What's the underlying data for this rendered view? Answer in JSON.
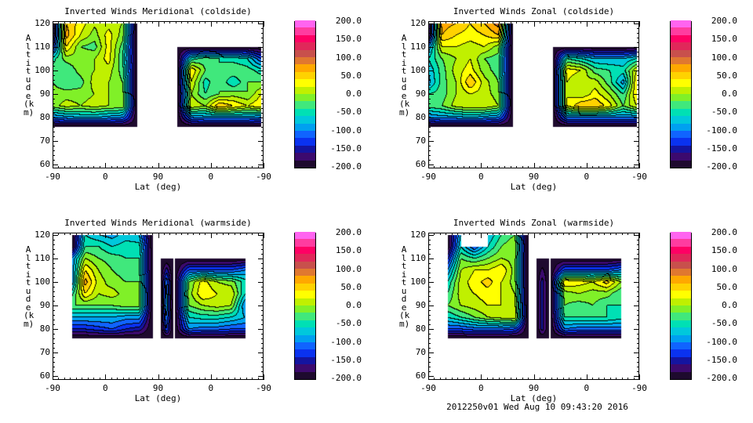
{
  "chart_data": [
    {
      "type": "heatmap",
      "title": "Inverted Winds Meridional (coldside)",
      "blocks": [
        {
          "x": [
            0,
            24,
            48,
            72,
            96,
            120,
            145
          ],
          "alt": [
            120,
            115,
            110,
            105,
            100,
            95,
            90,
            85,
            80,
            76
          ],
          "values": [
            [
              -200,
              60,
              30,
              5,
              10,
              0,
              -200
            ],
            [
              -200,
              70,
              20,
              -10,
              30,
              -10,
              -200
            ],
            [
              -150,
              40,
              -20,
              -30,
              30,
              -30,
              -200
            ],
            [
              -50,
              -10,
              -5,
              0,
              30,
              -40,
              -200
            ],
            [
              -30,
              -40,
              -10,
              0,
              10,
              -30,
              -200
            ],
            [
              -20,
              -40,
              -30,
              10,
              0,
              -20,
              -200
            ],
            [
              -10,
              -10,
              -10,
              0,
              0,
              -10,
              -200
            ],
            [
              -10,
              10,
              0,
              10,
              0,
              0,
              -200
            ],
            [
              -100,
              -90,
              -80,
              -80,
              -90,
              -100,
              -200
            ],
            [
              -200,
              -200,
              -200,
              -200,
              -200,
              -200,
              -200
            ]
          ]
        },
        {
          "x": [
            213,
            237,
            261,
            285,
            309,
            333,
            356
          ],
          "alt": [
            110,
            105,
            100,
            95,
            90,
            85,
            80,
            76
          ],
          "values": [
            [
              -200,
              -200,
              -200,
              -200,
              -200,
              -200,
              -200
            ],
            [
              -200,
              -50,
              -30,
              -40,
              -50,
              -60,
              -120
            ],
            [
              -200,
              40,
              -20,
              -40,
              -20,
              -30,
              -50
            ],
            [
              -200,
              20,
              -50,
              -20,
              -60,
              -20,
              -20
            ],
            [
              -200,
              0,
              -40,
              -20,
              -10,
              -20,
              20
            ],
            [
              -200,
              20,
              0,
              60,
              40,
              20,
              40
            ],
            [
              -200,
              -100,
              -90,
              -90,
              -90,
              -90,
              -100
            ],
            [
              -200,
              -200,
              -200,
              -200,
              -200,
              -200,
              -200
            ]
          ]
        }
      ]
    },
    {
      "type": "heatmap",
      "title": "Inverted Winds Zonal (coldside)",
      "blocks": [
        {
          "x": [
            0,
            24,
            48,
            72,
            96,
            120,
            145
          ],
          "alt": [
            120,
            115,
            110,
            105,
            100,
            95,
            90,
            85,
            80,
            76
          ],
          "values": [
            [
              -200,
              70,
              60,
              40,
              60,
              90,
              -200
            ],
            [
              -200,
              60,
              40,
              30,
              40,
              60,
              -200
            ],
            [
              -100,
              20,
              20,
              10,
              20,
              -10,
              -200
            ],
            [
              -60,
              -20,
              0,
              20,
              -20,
              -30,
              -200
            ],
            [
              -80,
              -30,
              10,
              30,
              -10,
              -30,
              -200
            ],
            [
              -90,
              -30,
              0,
              60,
              10,
              -20,
              -200
            ],
            [
              -40,
              -30,
              0,
              20,
              10,
              -10,
              -200
            ],
            [
              -30,
              -20,
              10,
              20,
              20,
              0,
              -200
            ],
            [
              -100,
              -90,
              -90,
              -80,
              -90,
              -100,
              -200
            ],
            [
              -200,
              -200,
              -200,
              -200,
              -200,
              -200,
              -200
            ]
          ]
        },
        {
          "x": [
            213,
            237,
            261,
            285,
            309,
            333,
            356
          ],
          "alt": [
            110,
            105,
            100,
            95,
            90,
            85,
            80,
            76
          ],
          "values": [
            [
              -200,
              -200,
              -200,
              -200,
              -200,
              -200,
              -200
            ],
            [
              -200,
              -40,
              -60,
              -80,
              -80,
              -80,
              -60
            ],
            [
              -200,
              30,
              20,
              -30,
              -40,
              -50,
              20
            ],
            [
              -200,
              20,
              0,
              10,
              -30,
              -90,
              40
            ],
            [
              -200,
              20,
              0,
              30,
              0,
              -40,
              40
            ],
            [
              -200,
              20,
              60,
              60,
              30,
              -20,
              20
            ],
            [
              -200,
              -100,
              -100,
              -100,
              -100,
              -100,
              -100
            ],
            [
              -200,
              -200,
              -200,
              -200,
              -200,
              -200,
              -200
            ]
          ]
        }
      ]
    },
    {
      "type": "heatmap",
      "title": "Inverted Winds Meridional (warmside)",
      "blocks": [
        {
          "x": [
            33,
            56,
            79,
            102,
            125,
            148,
            171
          ],
          "alt": [
            120,
            115,
            110,
            105,
            100,
            95,
            90,
            85,
            80,
            76
          ],
          "values": [
            [
              -200,
              -60,
              -80,
              -90,
              -70,
              -80,
              -200
            ],
            [
              -200,
              -40,
              -40,
              -60,
              -50,
              -50,
              -200
            ],
            [
              -100,
              0,
              -20,
              -30,
              -40,
              -40,
              -200
            ],
            [
              -100,
              40,
              0,
              -20,
              -30,
              -40,
              -200
            ],
            [
              -100,
              70,
              10,
              -10,
              -20,
              -20,
              -200
            ],
            [
              -50,
              40,
              0,
              10,
              -10,
              -10,
              -200
            ],
            [
              -20,
              -20,
              -20,
              -20,
              -10,
              -10,
              -200
            ],
            [
              -80,
              -80,
              -80,
              -80,
              -90,
              -90,
              -200
            ],
            [
              -140,
              -140,
              -130,
              -120,
              -140,
              -150,
              -200
            ],
            [
              -200,
              -200,
              -200,
              -200,
              -200,
              -200,
              -200
            ]
          ]
        },
        {
          "x": [
            185,
            195,
            206
          ],
          "alt": [
            110,
            100,
            90,
            80,
            76
          ],
          "values": [
            [
              -200,
              -200,
              -200
            ],
            [
              -200,
              -100,
              -200
            ],
            [
              -200,
              -80,
              -200
            ],
            [
              -200,
              -120,
              -200
            ],
            [
              -200,
              -200,
              -200
            ]
          ]
        },
        {
          "x": [
            209,
            233,
            257,
            281,
            305,
            329
          ],
          "alt": [
            110,
            105,
            100,
            95,
            90,
            85,
            80,
            76
          ],
          "values": [
            [
              -200,
              -200,
              -200,
              -200,
              -200,
              -200
            ],
            [
              -200,
              -120,
              -120,
              -120,
              -120,
              -100
            ],
            [
              -200,
              -20,
              30,
              0,
              -10,
              -50
            ],
            [
              -200,
              -10,
              40,
              20,
              20,
              -60
            ],
            [
              -200,
              -20,
              0,
              10,
              0,
              -100
            ],
            [
              -200,
              -60,
              -50,
              -50,
              -60,
              -80
            ],
            [
              -200,
              -100,
              -110,
              -110,
              -120,
              -120
            ],
            [
              -200,
              -200,
              -200,
              -200,
              -200,
              -200
            ]
          ]
        }
      ]
    },
    {
      "type": "heatmap",
      "title": "Inverted Winds Zonal (warmside)",
      "blocks": [
        {
          "x": [
            33,
            56,
            79,
            102,
            125,
            148,
            171
          ],
          "alt": [
            120,
            115,
            110,
            105,
            100,
            95,
            90,
            85,
            80,
            76
          ],
          "values": [
            [
              -200,
              -80,
              null,
              -80,
              -40,
              -20,
              -200
            ],
            [
              -200,
              -60,
              -120,
              -60,
              -20,
              0,
              -200
            ],
            [
              -150,
              -20,
              -40,
              -20,
              0,
              -10,
              -200
            ],
            [
              -100,
              0,
              20,
              20,
              40,
              -10,
              -200
            ],
            [
              -60,
              10,
              30,
              50,
              20,
              -10,
              -200
            ],
            [
              -40,
              10,
              20,
              30,
              20,
              0,
              -200
            ],
            [
              -20,
              0,
              10,
              20,
              20,
              10,
              -200
            ],
            [
              -60,
              -40,
              -20,
              0,
              10,
              20,
              -200
            ],
            [
              -120,
              -120,
              -110,
              -110,
              -110,
              -120,
              -200
            ],
            [
              -200,
              -200,
              -200,
              -200,
              -200,
              -200,
              -200
            ]
          ]
        },
        {
          "x": [
            185,
            195,
            206
          ],
          "alt": [
            110,
            100,
            90,
            80,
            76
          ],
          "values": [
            [
              -200,
              -200,
              -200
            ],
            [
              -200,
              -150,
              -200
            ],
            [
              -200,
              -150,
              -200
            ],
            [
              -200,
              -150,
              -200
            ],
            [
              -200,
              -200,
              -200
            ]
          ]
        },
        {
          "x": [
            209,
            233,
            257,
            281,
            305,
            329
          ],
          "alt": [
            110,
            105,
            100,
            95,
            90,
            85,
            80,
            76
          ],
          "values": [
            [
              -200,
              -200,
              -200,
              -200,
              -200,
              -200
            ],
            [
              -200,
              -120,
              -120,
              -120,
              -120,
              -100
            ],
            [
              -200,
              40,
              30,
              20,
              50,
              0
            ],
            [
              -200,
              -10,
              0,
              -10,
              -10,
              -40
            ],
            [
              -200,
              -20,
              -30,
              -20,
              -40,
              -40
            ],
            [
              -200,
              -40,
              -40,
              -40,
              -40,
              -50
            ],
            [
              -200,
              -100,
              -110,
              -110,
              -110,
              -110
            ],
            [
              -200,
              -200,
              -200,
              -200,
              -200,
              -200
            ]
          ]
        }
      ]
    }
  ],
  "axes": {
    "xlabel": "Lat (deg)",
    "ylabel": "Altitude (km)",
    "xticks": [
      0,
      90,
      180,
      270,
      360
    ],
    "xtick_labels": [
      "-90",
      "0",
      "90",
      "0",
      "-90"
    ],
    "xlim": [
      0,
      360
    ],
    "yticks": [
      60,
      70,
      80,
      90,
      100,
      110,
      120
    ],
    "ytick_labels": [
      "60",
      "70",
      "80",
      "90",
      "100",
      "110",
      "120"
    ],
    "ylim": [
      58.5,
      121
    ]
  },
  "colorbar": {
    "range": [
      -200,
      200
    ],
    "tick_labels": [
      "200.0",
      "150.0",
      "100.0",
      "50.0",
      "0.0",
      "-50.0",
      "-100.0",
      "-150.0",
      "-200.0"
    ],
    "colors": [
      "#1e0a2e",
      "#3c0a6e",
      "#1414a0",
      "#0a32f0",
      "#1064ff",
      "#00a0f0",
      "#00c8dc",
      "#00e0b4",
      "#40e87c",
      "#80f028",
      "#c0f000",
      "#ffff00",
      "#ffd200",
      "#ffa800",
      "#e07830",
      "#c8504c",
      "#e0285a",
      "#ff0064",
      "#ff3ca0",
      "#ff64f0"
    ]
  },
  "footer": "2012250v01 Wed Aug 10 09:43:20 2016"
}
